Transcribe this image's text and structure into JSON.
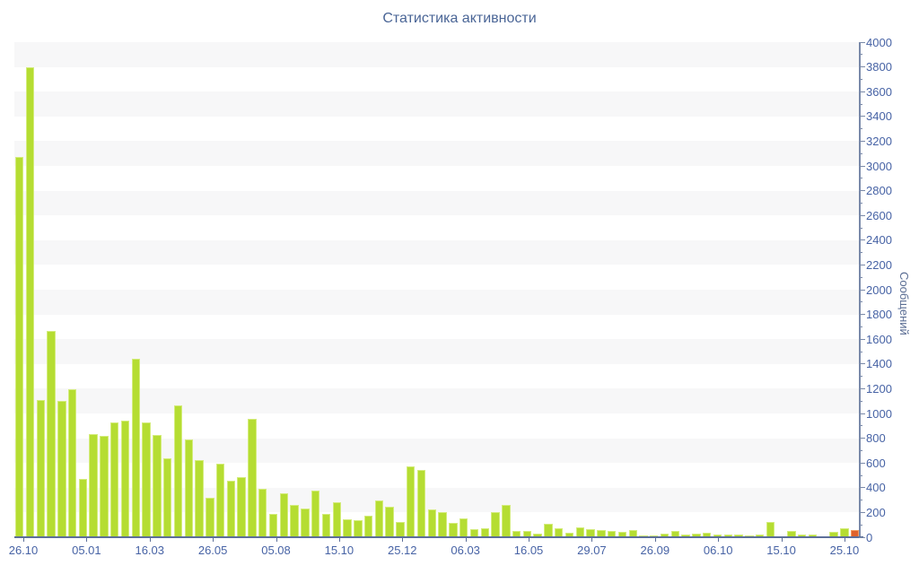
{
  "title": "Статистика активности",
  "y_axis": {
    "title": "Сообщений",
    "tick_labels": [
      0,
      200,
      400,
      600,
      800,
      1000,
      1200,
      1400,
      1600,
      1800,
      2000,
      2200,
      2400,
      2600,
      2800,
      3000,
      3200,
      3400,
      3600,
      3800,
      4000
    ]
  },
  "x_axis": {
    "tick_labels": [
      "26.10",
      "05.01",
      "16.03",
      "26.05",
      "05.08",
      "15.10",
      "25.12",
      "06.03",
      "16.05",
      "29.07",
      "26.09",
      "06.10",
      "15.10",
      "25.10"
    ]
  },
  "colors": {
    "bar": "#b5dd32",
    "bar_border": "#d4ec7d",
    "last_bar": "#e0622c",
    "last_bar_border": "#f29b5e",
    "band": "#f7f7f8",
    "axis_label": "#4763a5",
    "title": "#4a6596"
  },
  "chart_data": {
    "type": "bar",
    "title": "Статистика активности",
    "ylabel": "Сообщений",
    "ylim": [
      0,
      4000
    ],
    "y_tick_step": 200,
    "y_minor_tick_step": 100,
    "grid": "alternating horizontal bands every 200",
    "legend": "none",
    "x_tick_labels": [
      "26.10",
      "05.01",
      "16.03",
      "26.05",
      "05.08",
      "15.10",
      "25.12",
      "06.03",
      "16.05",
      "29.07",
      "26.09",
      "06.10",
      "15.10",
      "25.10"
    ],
    "values": [
      3070,
      3800,
      1110,
      1665,
      1105,
      1195,
      473,
      830,
      816,
      930,
      940,
      1440,
      930,
      828,
      635,
      1068,
      790,
      623,
      316,
      592,
      459,
      487,
      955,
      390,
      190,
      355,
      260,
      235,
      375,
      190,
      280,
      145,
      135,
      175,
      300,
      245,
      120,
      570,
      545,
      227,
      205,
      118,
      155,
      65,
      75,
      203,
      261,
      49,
      53,
      29,
      111,
      70,
      36,
      82,
      63,
      58,
      49,
      40,
      60,
      17,
      12,
      31,
      48,
      19,
      31,
      39,
      24,
      22,
      19,
      17,
      24,
      120,
      10,
      48,
      24,
      19,
      10,
      46,
      73,
      58
    ],
    "last_bar_highlighted": true
  }
}
